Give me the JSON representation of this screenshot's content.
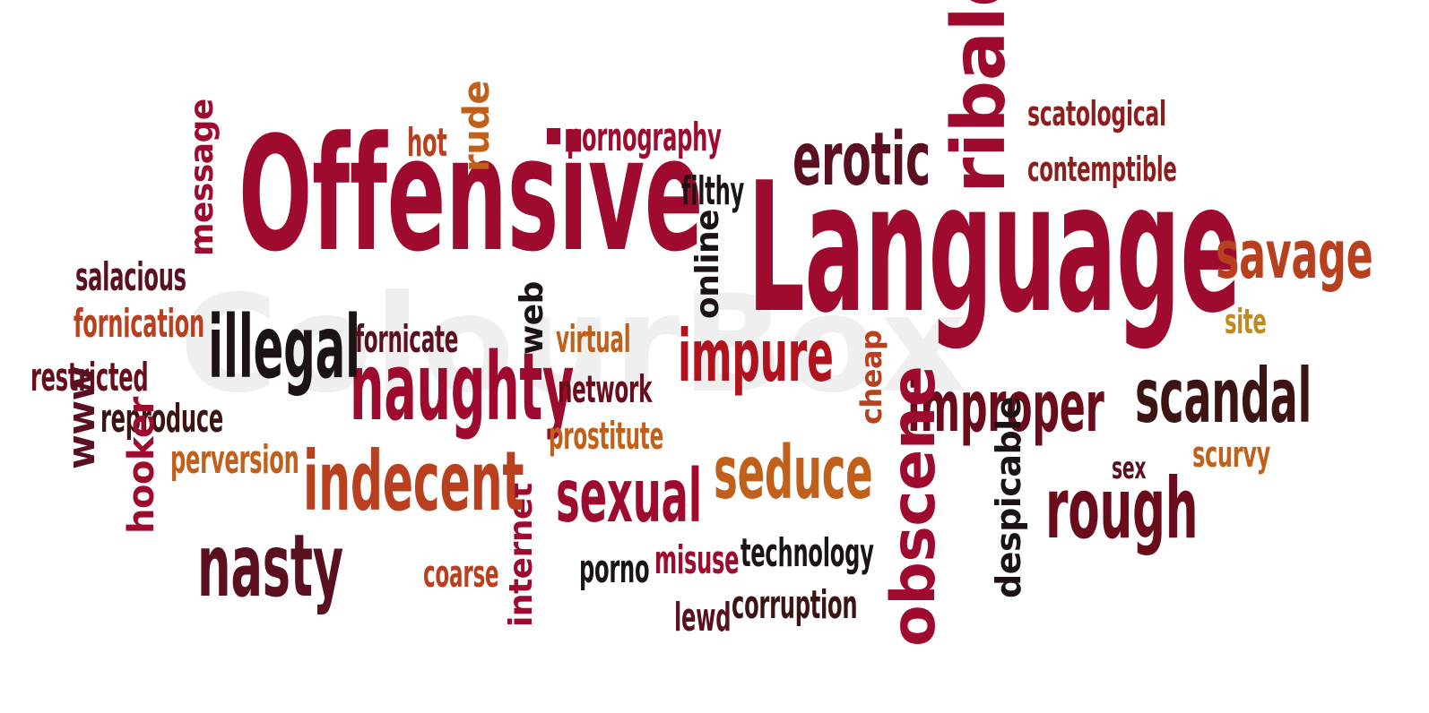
{
  "watermark": "ColourBox",
  "colors": {
    "crimson": "#9e0b2e",
    "dark_red": "#6a0c1c",
    "maroon": "#5a1020",
    "brown": "#3d1414",
    "rust": "#b8401f",
    "orange": "#c0601a",
    "gold": "#c08a20",
    "black": "#1c1414",
    "red": "#b0121e"
  },
  "words": {
    "offensive": "Offensive",
    "language": "Language",
    "erotic": "erotic",
    "ribald": "ribald",
    "scatological": "scatological",
    "contemptible": "contemptible",
    "savage": "savage",
    "site": "site",
    "scandal": "scandal",
    "improper": "improper",
    "scurvy": "scurvy",
    "sex": "sex",
    "rough": "rough",
    "despicable": "despicable",
    "obscene": "obscene",
    "cheap": "cheap",
    "impure": "impure",
    "seduce": "seduce",
    "sexual": "sexual",
    "technology": "technology",
    "corruption": "corruption",
    "lewd": "lewd",
    "misuse": "misuse",
    "porno": "porno",
    "internet": "internet",
    "coarse": "coarse",
    "nasty": "nasty",
    "indecent": "indecent",
    "naughty": "naughty",
    "illegal": "illegal",
    "fornicate": "fornicate",
    "web": "web",
    "virtual": "virtual",
    "network": "network",
    "prostitute": "prostitute",
    "online": "online",
    "filthy": "filthy",
    "pornography": "pornography",
    "hot": "hot",
    "rude": "rude",
    "message": "message",
    "salacious": "salacious",
    "fornication": "fornication",
    "restricted": "restricted",
    "reproduce": "reproduce",
    "www": "www",
    "perversion": "perversion",
    "hooker": "hooker"
  }
}
